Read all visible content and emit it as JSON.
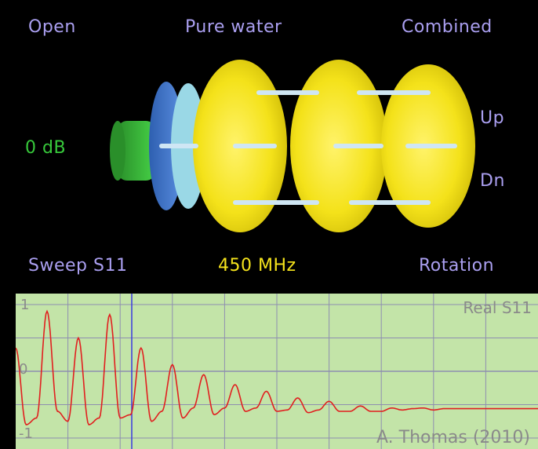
{
  "top": {
    "open": "Open",
    "pure_water": "Pure water",
    "combined": "Combined"
  },
  "side": {
    "up": "Up",
    "dn": "Dn",
    "gain": "0 dB"
  },
  "bottom": {
    "sweep": "Sweep S11",
    "frequency": "450 MHz",
    "rotation": "Rotation"
  },
  "plot": {
    "title": "Real S11",
    "y_ticks": [
      "1",
      "0",
      "-1"
    ],
    "credit": "A. Thomas (2010)"
  },
  "colors": {
    "violet": "#aa9ff0",
    "green": "#37c93b",
    "yellow": "#f5e31c",
    "plot_bg": "#c3e4a8",
    "grid": "#8e8eb0",
    "trace": "#e11f1f",
    "marker": "#3a3adf"
  },
  "chart_data": {
    "type": "line",
    "title": "Real S11",
    "ylim": [
      -1,
      1
    ],
    "series": [
      {
        "name": "Real S11",
        "x": [
          0,
          0.02,
          0.04,
          0.06,
          0.08,
          0.1,
          0.12,
          0.14,
          0.16,
          0.18,
          0.2,
          0.22,
          0.24,
          0.26,
          0.28,
          0.3,
          0.32,
          0.34,
          0.36,
          0.38,
          0.4,
          0.42,
          0.44,
          0.46,
          0.48,
          0.5,
          0.52,
          0.54,
          0.56,
          0.58,
          0.6,
          0.62,
          0.64,
          0.66,
          0.68,
          0.7,
          0.72,
          0.74,
          0.76,
          0.78,
          0.8,
          0.82,
          0.84,
          0.86,
          0.88,
          0.9,
          0.92,
          0.94,
          0.96,
          0.98,
          1.0
        ],
        "y": [
          0.35,
          -0.8,
          -0.7,
          0.9,
          -0.6,
          -0.75,
          0.5,
          -0.8,
          -0.7,
          0.85,
          -0.7,
          -0.65,
          0.35,
          -0.75,
          -0.6,
          0.1,
          -0.7,
          -0.55,
          -0.05,
          -0.65,
          -0.55,
          -0.2,
          -0.6,
          -0.55,
          -0.3,
          -0.6,
          -0.58,
          -0.4,
          -0.62,
          -0.58,
          -0.45,
          -0.6,
          -0.6,
          -0.52,
          -0.6,
          -0.6,
          -0.55,
          -0.58,
          -0.56,
          -0.55,
          -0.58,
          -0.56,
          -0.56,
          -0.56,
          -0.56,
          -0.56,
          -0.56,
          -0.56,
          -0.56,
          -0.56,
          -0.56
        ]
      }
    ]
  }
}
